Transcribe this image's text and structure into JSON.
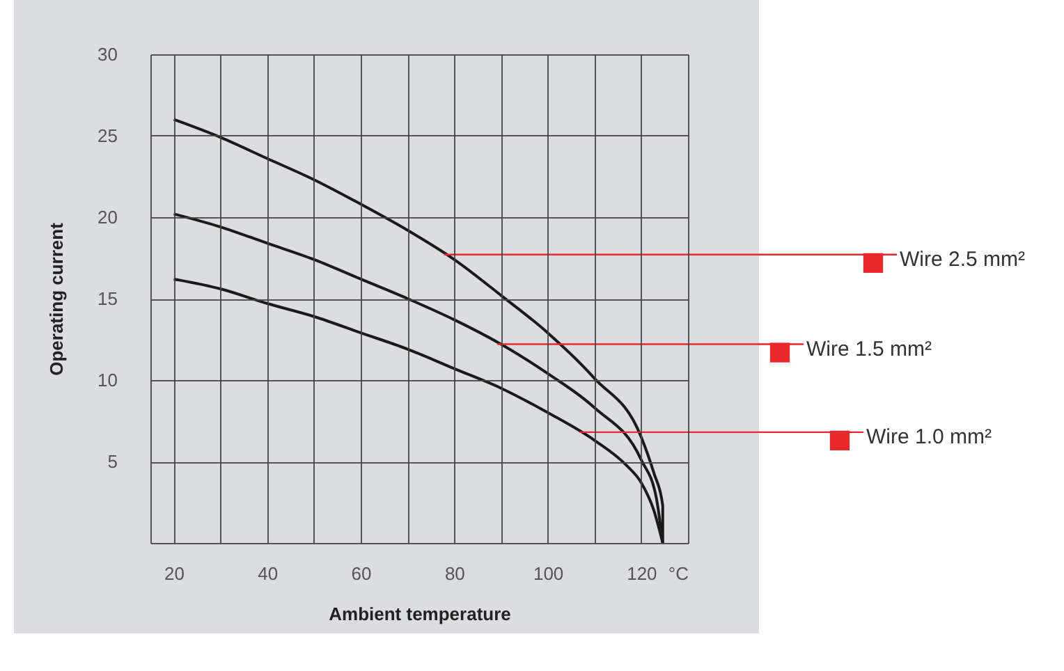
{
  "chart_data": {
    "type": "line",
    "xlabel": "Ambient temperature",
    "ylabel": "Operating current",
    "xlim": [
      15,
      130
    ],
    "ylim": [
      0,
      30
    ],
    "xticks": [
      {
        "value": 15,
        "label": null
      },
      20,
      {
        "value": 30,
        "label": null
      },
      40,
      {
        "value": 50,
        "label": null
      },
      60,
      {
        "value": 70,
        "label": null
      },
      80,
      {
        "value": 90,
        "label": null
      },
      100,
      {
        "value": 110,
        "label": null
      },
      120,
      {
        "value": 130,
        "label": "°C"
      }
    ],
    "yticks": [
      {
        "value": 0,
        "label": null
      },
      5,
      10,
      15,
      20,
      25,
      30
    ],
    "grid": true,
    "marker": "none",
    "line_style": "solid",
    "series": [
      {
        "color": "#1a1a1a",
        "x": [
          20,
          30,
          40,
          50,
          60,
          70,
          80,
          90,
          100,
          110,
          120,
          122.7,
          124.6,
          124.6
        ],
        "values": [
          26.0,
          24.9,
          23.6,
          22.3,
          20.8,
          19.2,
          17.4,
          15.2,
          12.9,
          10.1,
          6.5,
          4.3,
          2.3,
          0
        ]
      },
      {
        "color": "#1a1a1a",
        "x": [
          20,
          30,
          40,
          50,
          60,
          70,
          80,
          90,
          100,
          110,
          120,
          123.2,
          124.6
        ],
        "values": [
          20.2,
          19.4,
          18.4,
          17.4,
          16.2,
          15.0,
          13.7,
          12.2,
          10.4,
          8.3,
          5.1,
          2.8,
          0
        ]
      },
      {
        "color": "#1a1a1a",
        "x": [
          20,
          30,
          40,
          50,
          60,
          70,
          80,
          90,
          100,
          110,
          116.7,
          120,
          122.7,
          124.6
        ],
        "values": [
          16.2,
          15.6,
          14.7,
          13.9,
          12.9,
          11.9,
          10.7,
          9.5,
          8.0,
          6.3,
          4.8,
          3.7,
          2.0,
          0
        ]
      }
    ],
    "annotations": [
      {
        "text": "Wire 2.5 mm²",
        "x": 77.8,
        "y": 17.7
      },
      {
        "text": "Wire 1.5 mm²",
        "x": 89.2,
        "y": 12.2
      },
      {
        "text": "Wire 1.0 mm²",
        "x": 106.8,
        "y": 6.8
      }
    ]
  }
}
